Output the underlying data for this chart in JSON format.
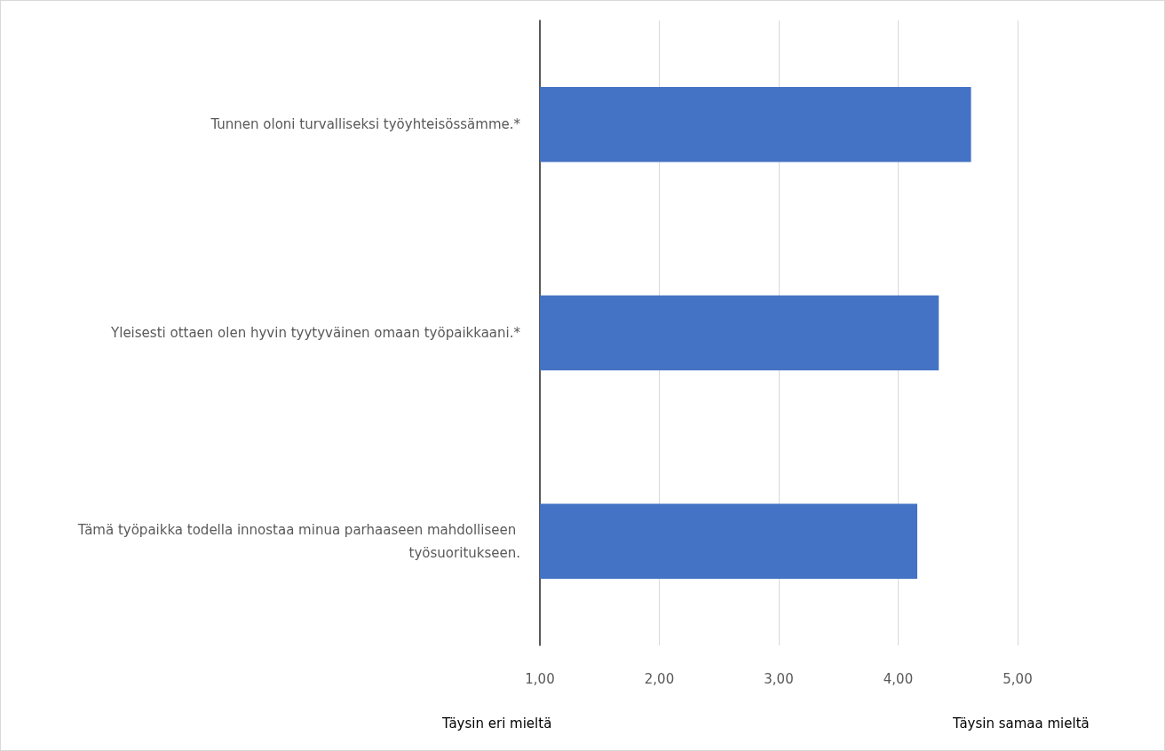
{
  "chart_data": {
    "type": "bar",
    "orientation": "horizontal",
    "categories": [
      "Tunnen oloni turvalliseksi työyhteisössämme.*",
      "Yleisesti ottaen olen hyvin tyytyväinen omaan työpaikkaani.*",
      "Tämä työpaikka todella innostaa minua parhaaseen mahdolliseen työsuoritukseen."
    ],
    "values": [
      4.61,
      4.34,
      4.16
    ],
    "color": "#4472c4",
    "xlim": [
      1,
      5
    ],
    "xticks": [
      {
        "value": 1,
        "label": "1,00"
      },
      {
        "value": 2,
        "label": "2,00"
      },
      {
        "value": 3,
        "label": "3,00"
      },
      {
        "value": 4,
        "label": "4,00"
      },
      {
        "value": 5,
        "label": "5,00"
      }
    ],
    "grid": "x",
    "annotations": [
      "Täysin eri mieltä",
      "Täysin samaa mieltä"
    ]
  }
}
